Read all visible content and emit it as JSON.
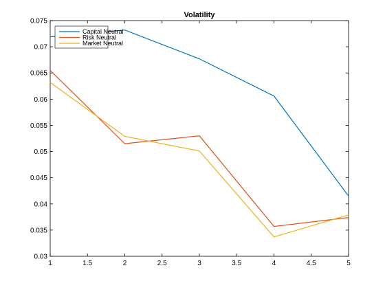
{
  "chart_data": {
    "type": "line",
    "title": "Volatility",
    "xlabel": "",
    "ylabel": "",
    "x": [
      1,
      2,
      3,
      4,
      5
    ],
    "xlim": [
      1,
      5
    ],
    "ylim": [
      0.03,
      0.075
    ],
    "xticks": [
      "1",
      "1.5",
      "2",
      "2.5",
      "3",
      "3.5",
      "4",
      "4.5",
      "5"
    ],
    "yticks": [
      "0.03",
      "0.035",
      "0.04",
      "0.045",
      "0.05",
      "0.055",
      "0.06",
      "0.065",
      "0.07",
      "0.075"
    ],
    "grid": false,
    "legend_position": "top-left",
    "series": [
      {
        "name": "Capital Neutral",
        "color": "#0072BD",
        "values": [
          0.0719,
          0.0732,
          0.0677,
          0.0606,
          0.0415
        ]
      },
      {
        "name": "Risk Neutral",
        "color": "#D95319",
        "values": [
          0.0655,
          0.0515,
          0.053,
          0.0357,
          0.0374
        ]
      },
      {
        "name": "Market Neutral",
        "color": "#EDB120",
        "values": [
          0.0632,
          0.0529,
          0.0501,
          0.0337,
          0.0379
        ]
      }
    ]
  }
}
